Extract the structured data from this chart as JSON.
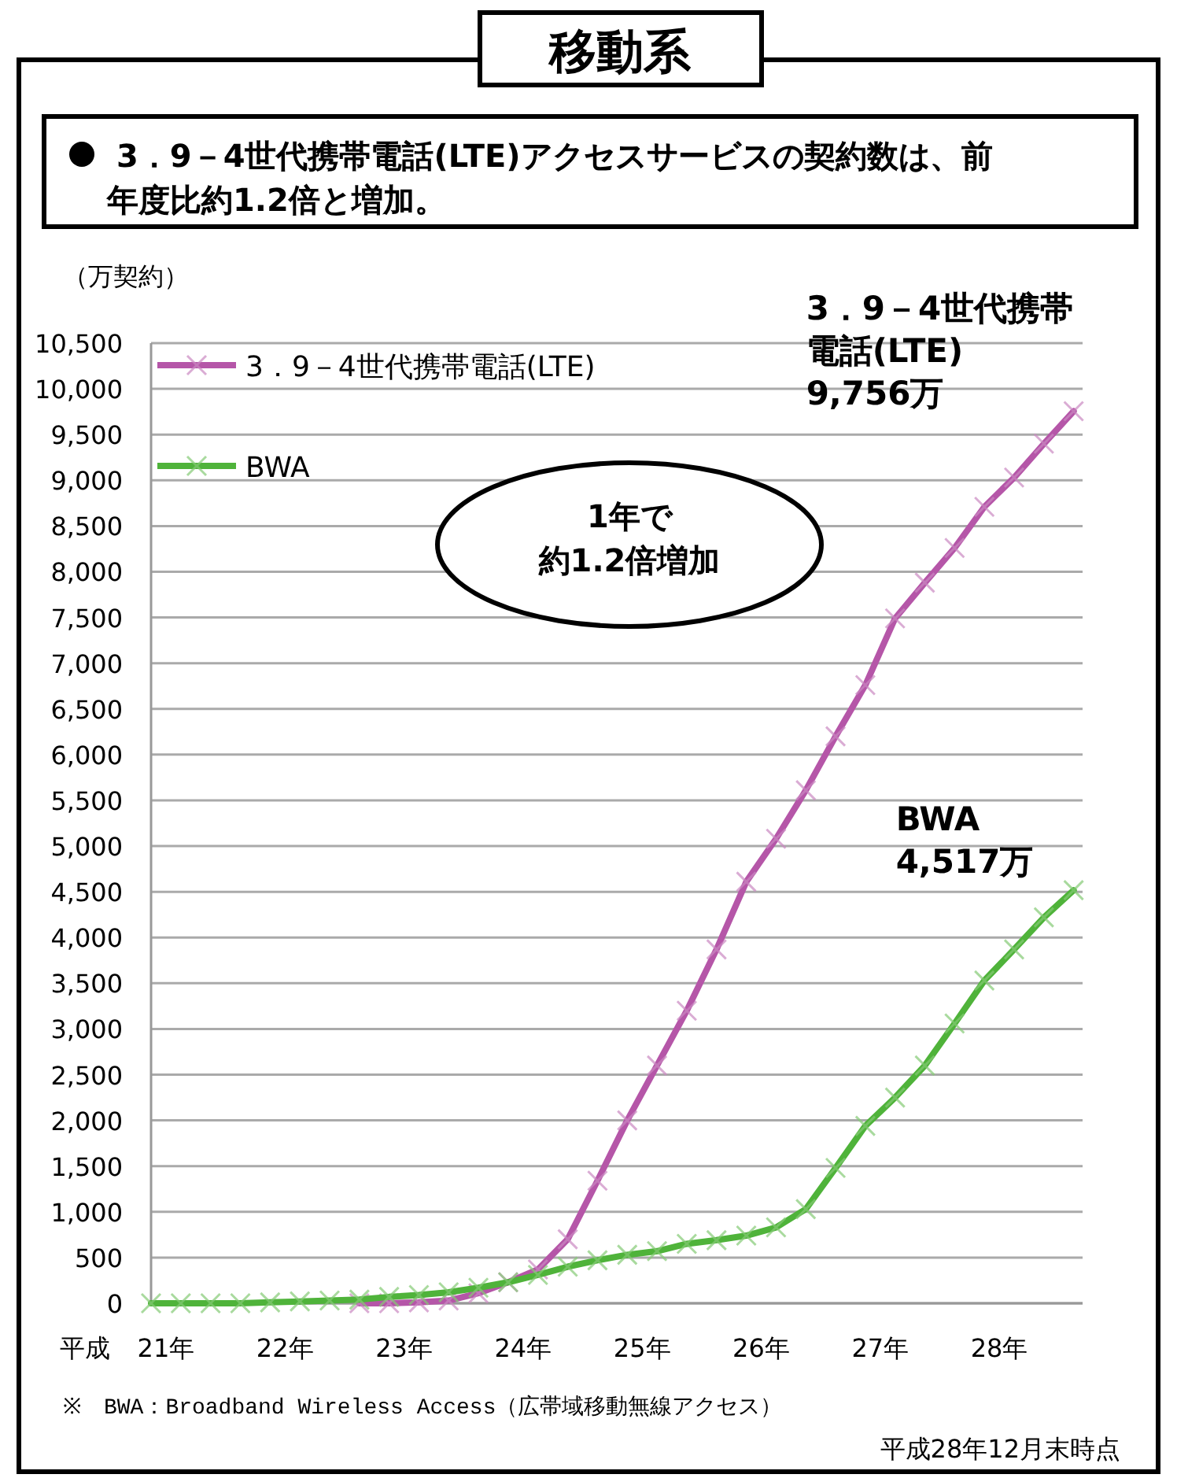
{
  "chart_data": {
    "type": "line",
    "title": "移動系",
    "subtitle": "3．9－4世代携帯電話(LTE)アクセスサービスの契約数は、前年度比約1.2倍と増加。",
    "ylabel": "（万契約）",
    "xlabel": "平成",
    "x": [
      20.875,
      21.125,
      21.375,
      21.625,
      21.875,
      22.125,
      22.375,
      22.625,
      22.875,
      23.125,
      23.375,
      23.625,
      23.875,
      24.125,
      24.375,
      24.625,
      24.875,
      25.125,
      25.375,
      25.625,
      25.875,
      26.125,
      26.375,
      26.625,
      26.875,
      27.125,
      27.375,
      27.625,
      27.875,
      28.125,
      28.375,
      28.625
    ],
    "series": [
      {
        "name": "3．9－4世代携帯電話(LTE)",
        "color": "#b556a8",
        "values": [
          null,
          null,
          null,
          null,
          null,
          null,
          null,
          0,
          0,
          10,
          30,
          110,
          230,
          370,
          700,
          1340,
          2000,
          2600,
          3200,
          3870,
          4610,
          5080,
          5610,
          6200,
          6760,
          7490,
          7880,
          8260,
          8710,
          9030,
          9400,
          9756
        ]
      },
      {
        "name": "BWA",
        "color": "#4fb33a",
        "values": [
          0,
          0,
          0,
          0,
          10,
          20,
          30,
          40,
          70,
          90,
          120,
          170,
          230,
          310,
          400,
          470,
          530,
          570,
          650,
          690,
          740,
          830,
          1030,
          1480,
          1940,
          2250,
          2600,
          3060,
          3530,
          3870,
          4220,
          4517
        ]
      }
    ],
    "xlim": [
      20.875,
      28.7
    ],
    "xticks": [
      {
        "value": 21,
        "label": "21年"
      },
      {
        "value": 22,
        "label": "22年"
      },
      {
        "value": 23,
        "label": "23年"
      },
      {
        "value": 24,
        "label": "24年"
      },
      {
        "value": 25,
        "label": "25年"
      },
      {
        "value": 26,
        "label": "26年"
      },
      {
        "value": 27,
        "label": "27年"
      },
      {
        "value": 28,
        "label": "28年"
      }
    ],
    "ylim": [
      0,
      10500
    ],
    "yticks": [
      {
        "value": 0,
        "label": "0"
      },
      {
        "value": 500,
        "label": "500"
      },
      {
        "value": 1000,
        "label": "1,000"
      },
      {
        "value": 1500,
        "label": "1,500"
      },
      {
        "value": 2000,
        "label": "2,000"
      },
      {
        "value": 2500,
        "label": "2,500"
      },
      {
        "value": 3000,
        "label": "3,000"
      },
      {
        "value": 3500,
        "label": "3,500"
      },
      {
        "value": 4000,
        "label": "4,000"
      },
      {
        "value": 4500,
        "label": "4,500"
      },
      {
        "value": 5000,
        "label": "5,000"
      },
      {
        "value": 5500,
        "label": "5,500"
      },
      {
        "value": 6000,
        "label": "6,000"
      },
      {
        "value": 6500,
        "label": "6,500"
      },
      {
        "value": 7000,
        "label": "7,000"
      },
      {
        "value": 7500,
        "label": "7,500"
      },
      {
        "value": 8000,
        "label": "8,000"
      },
      {
        "value": 8500,
        "label": "8,500"
      },
      {
        "value": 9000,
        "label": "9,000"
      },
      {
        "value": 9500,
        "label": "9,500"
      },
      {
        "value": 10000,
        "label": "10,000"
      },
      {
        "value": 10500,
        "label": "10,500"
      }
    ],
    "grid": "y",
    "legend": "top left",
    "marker": "cross",
    "line_style": "solid",
    "annotations": [
      "1年で約1.2倍増加",
      "※　BWA：Broadband Wireless Access（広帯域移動無線アクセス）",
      "平成28年12月末時点",
      {
        "text": "3．9－4世代携帯電話(LTE)\n9,756万",
        "x": 28.625,
        "y": 9756
      },
      {
        "text": "BWA\n4,517万",
        "x": 28.625,
        "y": 4517
      }
    ]
  }
}
